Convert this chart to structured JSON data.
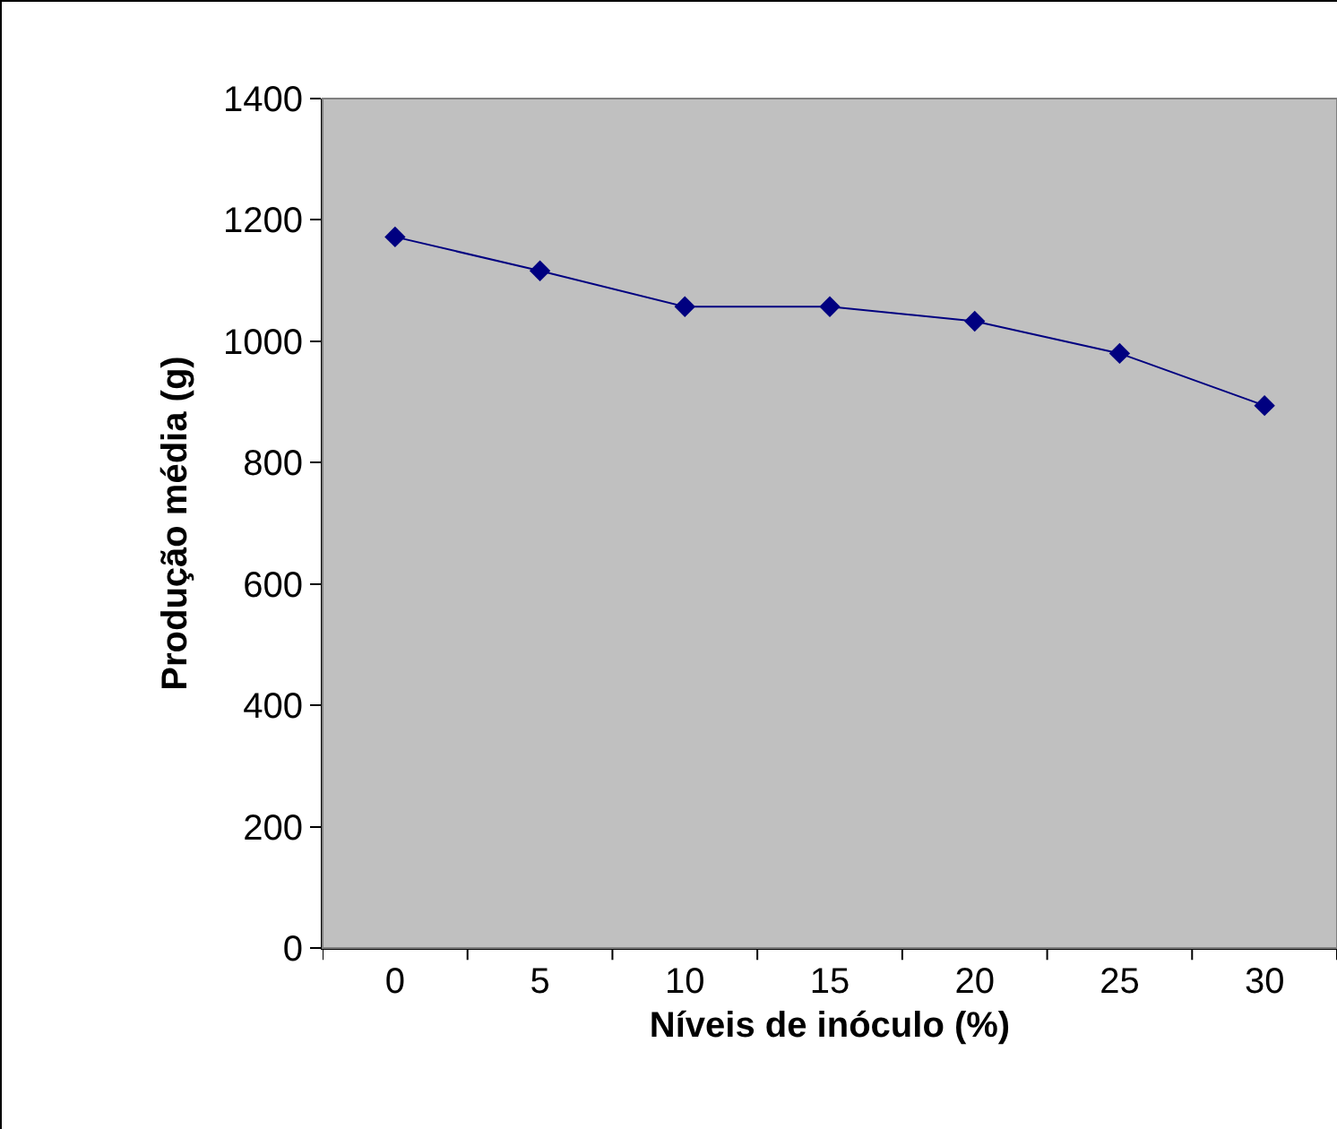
{
  "chart_data": {
    "type": "line",
    "xlabel": "Níveis de inóculo (%)",
    "ylabel": "Produção média (g)",
    "categories": [
      "0",
      "5",
      "10",
      "15",
      "20",
      "25",
      "30"
    ],
    "series": [
      {
        "color": "#000080",
        "values": [
          1172,
          1116,
          1057,
          1057,
          1033,
          980,
          894
        ]
      }
    ],
    "ylim": [
      0,
      1400
    ],
    "yticks": [
      0,
      200,
      400,
      600,
      800,
      1000,
      1200,
      1400
    ],
    "grid": false,
    "marker": "diamond",
    "line_style": "solid"
  }
}
